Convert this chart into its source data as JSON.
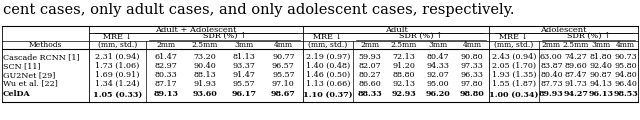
{
  "title_text": "cent cases, only adult cases, and only adolescent cases, respectively.",
  "methods": [
    "Cascade RCNN [1]",
    "SCN [11]",
    "GU2Net [29]",
    "Wu et al. [22]",
    "CelDA"
  ],
  "data": [
    [
      "2.31 (0.94)",
      "61.47",
      "73.20",
      "81.13",
      "90.77",
      "2.19 (0.97)",
      "59.93",
      "72.13",
      "80.47",
      "90.80",
      "2.43 (0.94)",
      "63.00",
      "74.27",
      "81.80",
      "90.73"
    ],
    [
      "1.73 (1.06)",
      "82.97",
      "90.40",
      "93.37",
      "96.57",
      "1.40 (0.48)",
      "82.07",
      "91.20",
      "94.33",
      "97.33",
      "2.05 (1.70)",
      "83.87",
      "89.60",
      "92.40",
      "95.80"
    ],
    [
      "1.69 (0.91)",
      "80.33",
      "88.13",
      "91.47",
      "95.57",
      "1.46 (0.50)",
      "80.27",
      "88.80",
      "92.07",
      "96.33",
      "1.93 (1.35)",
      "80.40",
      "87.47",
      "90.87",
      "94.80"
    ],
    [
      "1.34 (1.24)",
      "87.17",
      "91.93",
      "95.57",
      "97.10",
      "1.13 (0.66)",
      "86.60",
      "92.13",
      "95.00",
      "97.80",
      "1.55 (1.87)",
      "87.73",
      "91.73",
      "94.13",
      "96.40"
    ],
    [
      "1.05 (0.33)",
      "89.13",
      "93.60",
      "96.17",
      "98.67",
      "1.10 (0.37)",
      "88.33",
      "92.93",
      "96.20",
      "98.80",
      "1.00 (0.34)",
      "89.93",
      "94.27",
      "96.13",
      "98.53"
    ]
  ],
  "bold_row": 4,
  "background_color": "#ffffff",
  "title_fontsize": 10.5,
  "header_fontsize": 6.0,
  "data_fontsize": 5.8
}
